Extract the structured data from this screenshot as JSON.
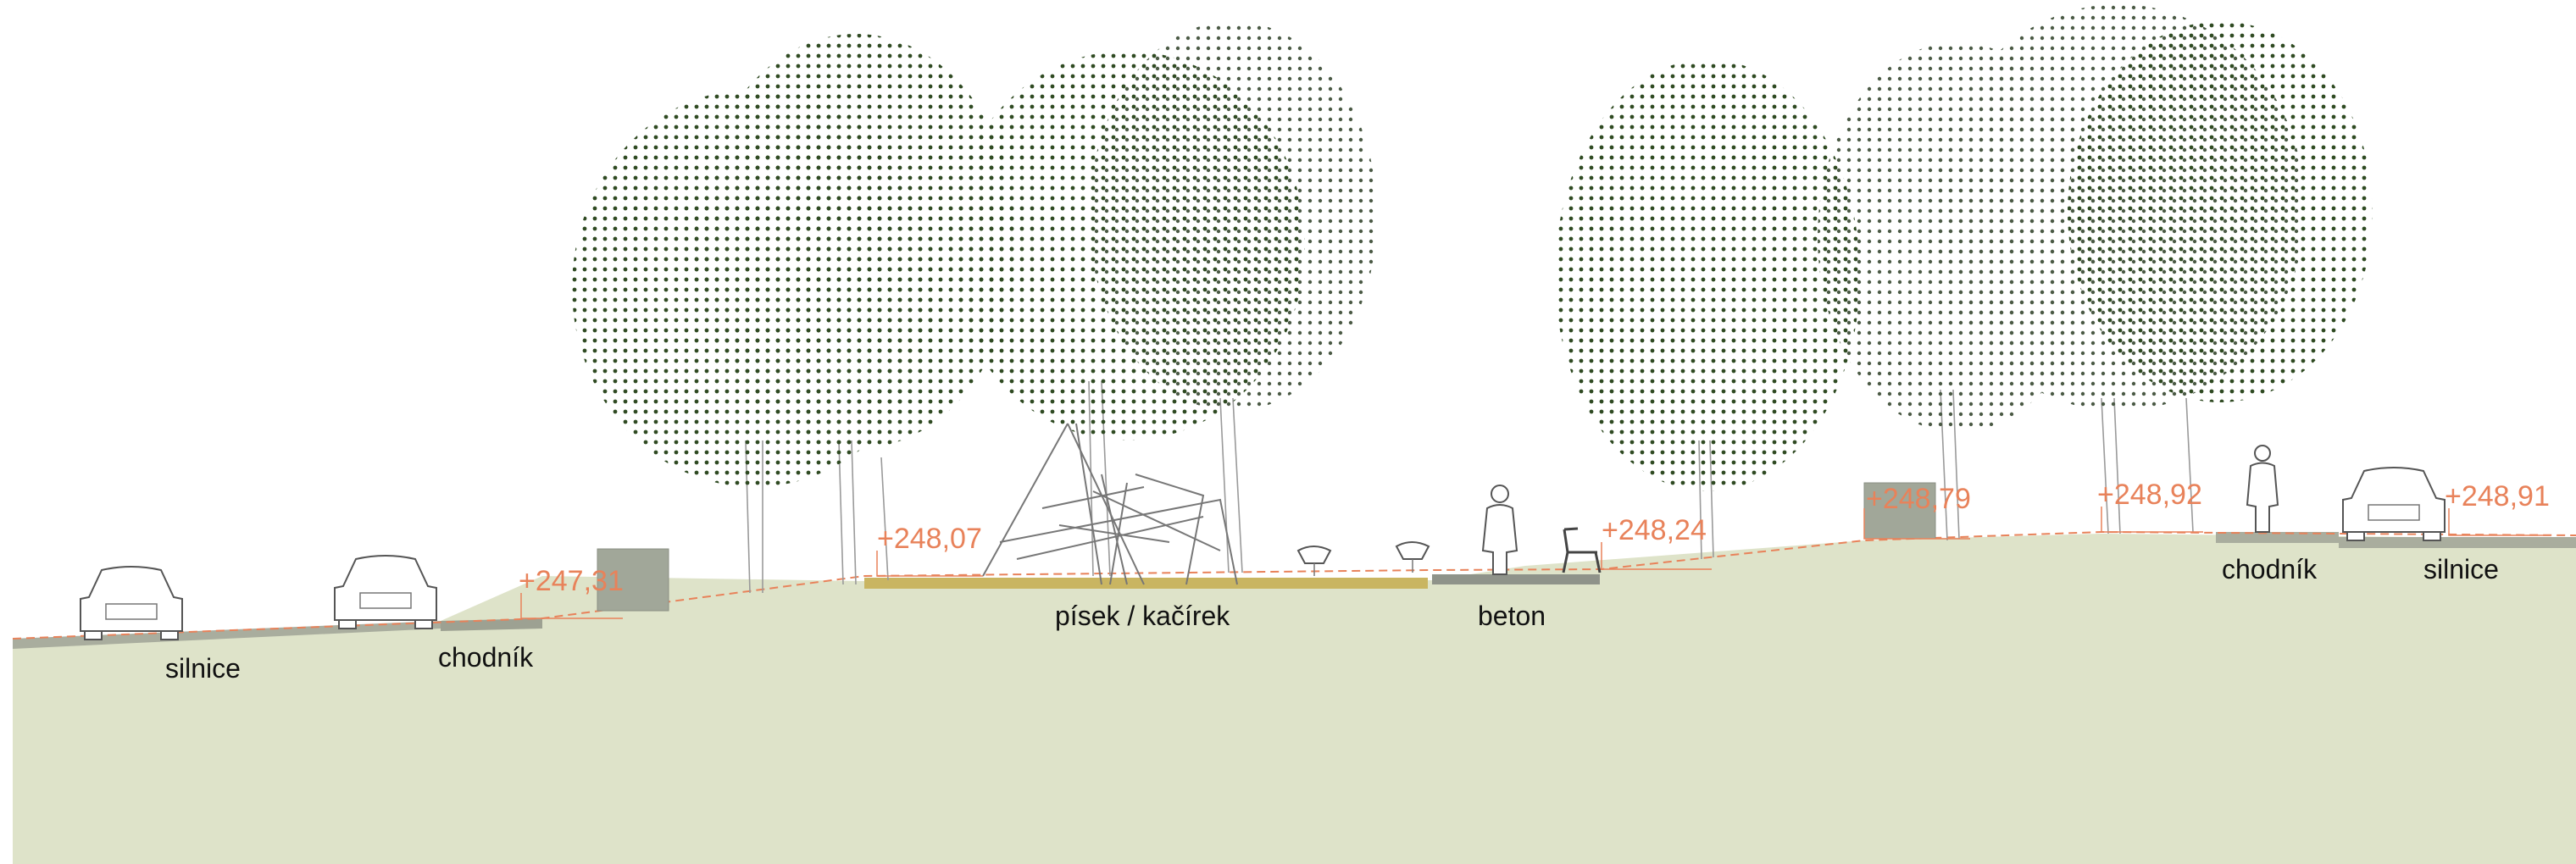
{
  "colors": {
    "ground": "#dee3c9",
    "road": "#a9ad9e",
    "sand": "#c9b561",
    "concrete": "#8f938a",
    "elevation": "#e8825a",
    "foliage": "#2f4a22"
  },
  "surface_labels": {
    "road_left": "silnice",
    "sidewalk_left": "chodník",
    "sand_gravel": "písek / kačírek",
    "concrete": "beton",
    "sidewalk_right": "chodník",
    "road_right": "silnice"
  },
  "elevations": {
    "e1": "+247,31",
    "e2": "+248,07",
    "e3": "+248,24",
    "e4": "+248,79",
    "e5": "+248,92",
    "e6": "+248,91"
  },
  "icons": [
    "car-icon",
    "person-icon",
    "bench-icon",
    "spring-rider-icon",
    "climbing-structure-icon",
    "tree-canopy-icon"
  ]
}
